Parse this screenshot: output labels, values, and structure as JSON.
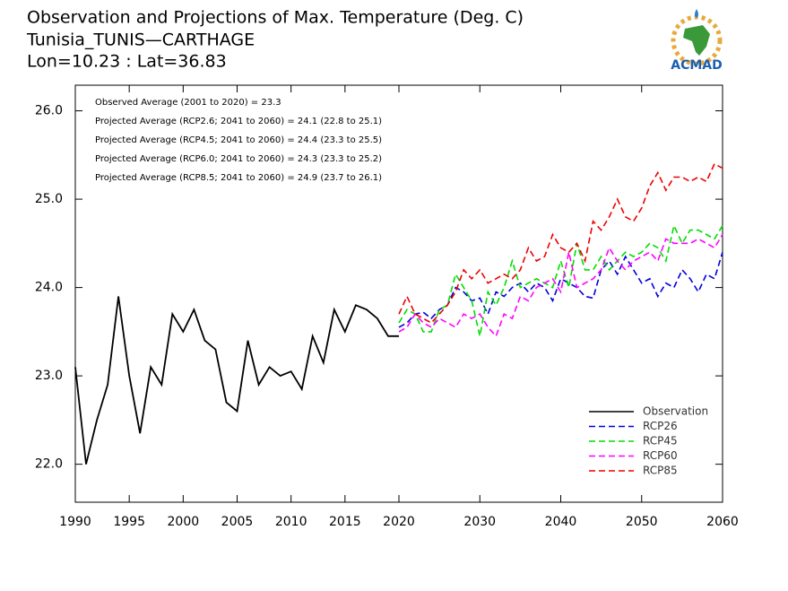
{
  "chart_data": {
    "type": "line",
    "title": [
      "Observation and Projections of Max. Temperature (Deg. C)",
      "Tunisia_TUNIS—CARTHAGE",
      "Lon=10.23 : Lat=36.83"
    ],
    "logo_text": "ACMAD",
    "annotations": [
      "Observed Average (2001 to 2020) = 23.3",
      "Projected Average (RCP2.6; 2041 to 2060) = 24.1 (22.8 to 25.1)",
      "Projected Average (RCP4.5; 2041 to 2060) = 24.4 (23.3 to 25.5)",
      "Projected Average (RCP6.0; 2041 to 2060) = 24.3 (23.3 to 25.2)",
      "Projected Average (RCP8.5; 2041 to 2060) = 24.9 (23.7 to 26.1)"
    ],
    "xlim": [
      1990,
      2060
    ],
    "xticks": [
      1990,
      1995,
      2000,
      2005,
      2010,
      2015,
      2020,
      2030,
      2040,
      2050,
      2060
    ],
    "ylim": [
      21.57,
      26.29
    ],
    "yticks": [
      {
        "value": 22,
        "label": "22.0"
      },
      {
        "value": 23,
        "label": "23.0"
      },
      {
        "value": 24,
        "label": "24.0"
      },
      {
        "value": 25,
        "label": "25.0"
      },
      {
        "value": 26,
        "label": "26.0"
      }
    ],
    "legend": "lower right",
    "series": [
      {
        "name": "Observation",
        "color": "#000000",
        "dash": false,
        "x": [
          1990,
          1991,
          1992,
          1993,
          1994,
          1995,
          1996,
          1997,
          1998,
          1999,
          2000,
          2001,
          2002,
          2003,
          2004,
          2005,
          2006,
          2007,
          2008,
          2009,
          2010,
          2011,
          2012,
          2013,
          2014,
          2015,
          2016,
          2017,
          2018,
          2019,
          2020
        ],
        "values": [
          23.1,
          22.0,
          22.5,
          22.9,
          23.9,
          23.0,
          22.35,
          23.1,
          22.9,
          23.7,
          23.5,
          23.75,
          23.4,
          23.3,
          22.7,
          22.6,
          23.4,
          22.9,
          23.1,
          23.0,
          23.05,
          22.85,
          23.45,
          23.15,
          23.75,
          23.5,
          23.8,
          23.75,
          23.65,
          23.45,
          23.45
        ]
      },
      {
        "name": "RCP26",
        "color": "#0000dd",
        "dash": true,
        "x": [
          2020,
          2021,
          2022,
          2023,
          2024,
          2025,
          2026,
          2027,
          2028,
          2029,
          2030,
          2031,
          2032,
          2033,
          2034,
          2035,
          2036,
          2037,
          2038,
          2039,
          2040,
          2041,
          2042,
          2043,
          2044,
          2045,
          2046,
          2047,
          2048,
          2049,
          2050,
          2051,
          2052,
          2053,
          2054,
          2055,
          2056,
          2057,
          2058,
          2059,
          2060
        ],
        "values": [
          23.55,
          23.6,
          23.7,
          23.72,
          23.65,
          23.75,
          23.8,
          24.0,
          23.95,
          23.85,
          23.88,
          23.7,
          23.95,
          23.9,
          24.0,
          24.05,
          23.95,
          24.05,
          24.0,
          23.85,
          24.1,
          24.05,
          24.0,
          23.9,
          23.88,
          24.2,
          24.3,
          24.15,
          24.35,
          24.2,
          24.05,
          24.1,
          23.9,
          24.05,
          24.0,
          24.2,
          24.1,
          23.95,
          24.15,
          24.1,
          24.4
        ]
      },
      {
        "name": "RCP45",
        "color": "#00dd00",
        "dash": true,
        "x": [
          2020,
          2021,
          2022,
          2023,
          2024,
          2025,
          2026,
          2027,
          2028,
          2029,
          2030,
          2031,
          2032,
          2033,
          2034,
          2035,
          2036,
          2037,
          2038,
          2039,
          2040,
          2041,
          2042,
          2043,
          2044,
          2045,
          2046,
          2047,
          2048,
          2049,
          2050,
          2051,
          2052,
          2053,
          2054,
          2055,
          2056,
          2057,
          2058,
          2059,
          2060
        ],
        "values": [
          23.6,
          23.75,
          23.7,
          23.5,
          23.5,
          23.75,
          23.8,
          24.15,
          24.0,
          23.85,
          23.45,
          23.95,
          23.8,
          24.0,
          24.3,
          24.0,
          24.05,
          24.1,
          24.05,
          24.0,
          24.3,
          24.0,
          24.5,
          24.2,
          24.2,
          24.35,
          24.2,
          24.3,
          24.4,
          24.35,
          24.4,
          24.5,
          24.45,
          24.3,
          24.7,
          24.5,
          24.65,
          24.65,
          24.6,
          24.55,
          24.7
        ]
      },
      {
        "name": "RCP60",
        "color": "#ff00ff",
        "dash": true,
        "x": [
          2020,
          2021,
          2022,
          2023,
          2024,
          2025,
          2026,
          2027,
          2028,
          2029,
          2030,
          2031,
          2032,
          2033,
          2034,
          2035,
          2036,
          2037,
          2038,
          2039,
          2040,
          2041,
          2042,
          2043,
          2044,
          2045,
          2046,
          2047,
          2048,
          2049,
          2050,
          2051,
          2052,
          2053,
          2054,
          2055,
          2056,
          2057,
          2058,
          2059,
          2060
        ],
        "values": [
          23.5,
          23.55,
          23.7,
          23.6,
          23.55,
          23.65,
          23.6,
          23.55,
          23.7,
          23.65,
          23.7,
          23.55,
          23.45,
          23.7,
          23.65,
          23.9,
          23.85,
          24.0,
          24.05,
          24.1,
          23.95,
          24.4,
          24.0,
          24.05,
          24.1,
          24.2,
          24.45,
          24.3,
          24.2,
          24.3,
          24.35,
          24.4,
          24.3,
          24.55,
          24.5,
          24.5,
          24.5,
          24.55,
          24.5,
          24.45,
          24.6
        ]
      },
      {
        "name": "RCP85",
        "color": "#ee0000",
        "dash": true,
        "x": [
          2020,
          2021,
          2022,
          2023,
          2024,
          2025,
          2026,
          2027,
          2028,
          2029,
          2030,
          2031,
          2032,
          2033,
          2034,
          2035,
          2036,
          2037,
          2038,
          2039,
          2040,
          2041,
          2042,
          2043,
          2044,
          2045,
          2046,
          2047,
          2048,
          2049,
          2050,
          2051,
          2052,
          2053,
          2054,
          2055,
          2056,
          2057,
          2058,
          2059,
          2060
        ],
        "values": [
          23.7,
          23.9,
          23.7,
          23.65,
          23.6,
          23.7,
          23.8,
          23.95,
          24.2,
          24.1,
          24.2,
          24.05,
          24.1,
          24.15,
          24.1,
          24.2,
          24.45,
          24.3,
          24.35,
          24.6,
          24.45,
          24.4,
          24.5,
          24.3,
          24.75,
          24.65,
          24.8,
          25.0,
          24.8,
          24.75,
          24.9,
          25.15,
          25.3,
          25.1,
          25.25,
          25.25,
          25.2,
          25.25,
          25.2,
          25.4,
          25.35
        ]
      }
    ]
  }
}
